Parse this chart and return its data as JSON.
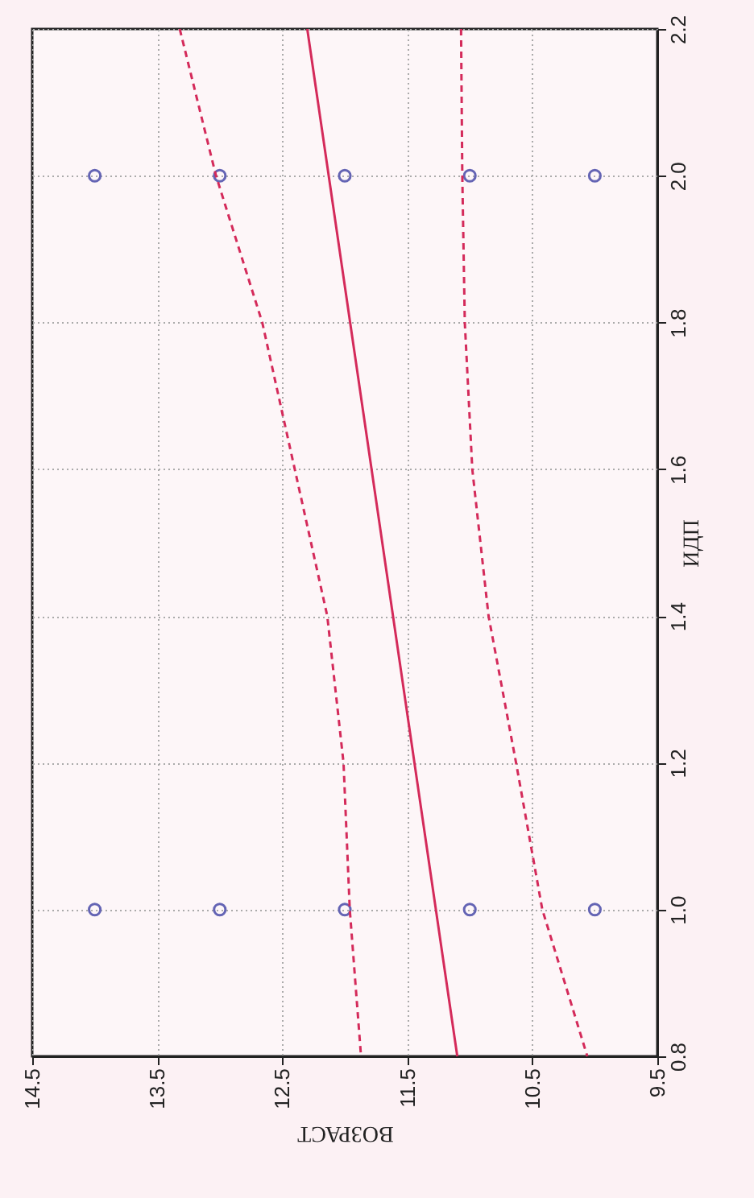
{
  "chart_data": {
    "type": "scatter",
    "xlabel": "ВОЗРАСТ",
    "ylabel": "ИДП",
    "xlim": [
      14.5,
      9.5
    ],
    "xticks": [
      14.5,
      13.5,
      12.5,
      11.5,
      10.5,
      9.5
    ],
    "ylim": [
      0.8,
      2.2
    ],
    "yticks": [
      0.8,
      {
        "value": 1,
        "label": "1.0"
      },
      1.2,
      1.4,
      1.6,
      1.8,
      {
        "value": 2,
        "label": "2.0"
      },
      2.2
    ],
    "grid": true,
    "marker": "circle",
    "series": [
      {
        "color": "#6464b4",
        "x": [
          14,
          13,
          12,
          11,
          10,
          14,
          13,
          12,
          11,
          10
        ],
        "values": [
          1,
          1,
          1,
          1,
          1,
          2,
          2,
          2,
          2,
          2
        ]
      },
      {
        "type": "line",
        "color": "#d42a5a",
        "line_style": "solid",
        "marker": "none",
        "x": [
          11.1,
          12.3
        ],
        "values": [
          0.8,
          2.2
        ]
      },
      {
        "type": "line",
        "color": "#d42a5a",
        "line_style": "dashed",
        "marker": "none",
        "x": [
          11.87,
          11.96,
          12.01,
          12.14,
          12.4,
          12.66,
          13.03,
          13.32
        ],
        "values": [
          0.8,
          1.0,
          1.2,
          1.4,
          1.6,
          1.8,
          2.0,
          2.2
        ]
      },
      {
        "type": "line",
        "color": "#d42a5a",
        "line_style": "dashed",
        "marker": "none",
        "x": [
          10.06,
          10.42,
          10.63,
          10.85,
          10.98,
          11.04,
          11.06,
          11.07
        ],
        "values": [
          0.8,
          1.0,
          1.2,
          1.4,
          1.6,
          1.8,
          2.0,
          2.2
        ]
      }
    ]
  }
}
